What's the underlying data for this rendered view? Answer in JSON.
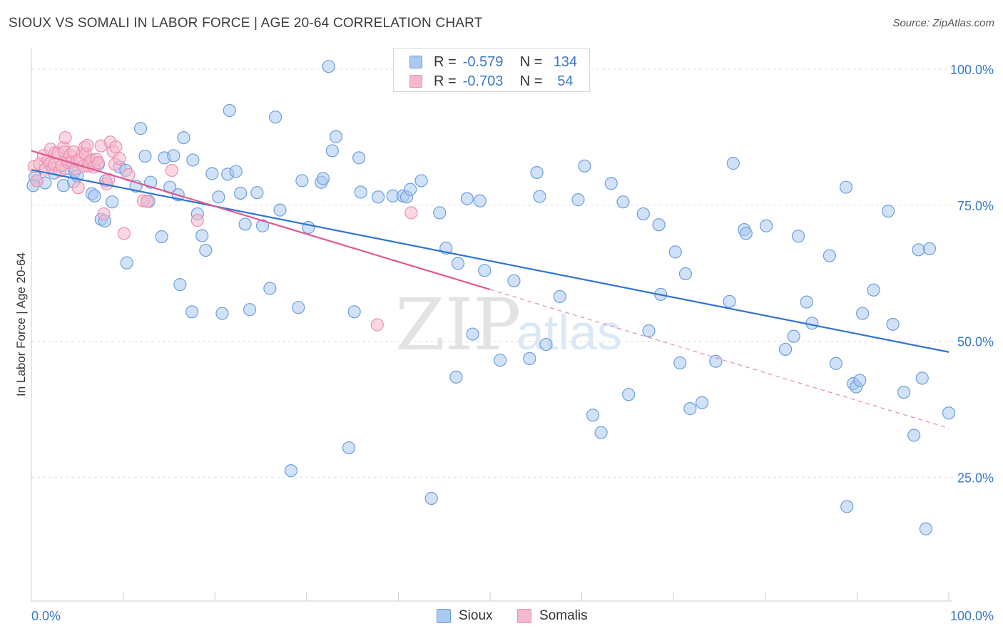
{
  "title": "SIOUX VS SOMALI IN LABOR FORCE | AGE 20-64 CORRELATION CHART",
  "source": "Source: ZipAtlas.com",
  "watermark": {
    "zip": "ZIP",
    "atlas": "atlas"
  },
  "legend": {
    "r_label": "R =",
    "n_label": "N =",
    "rows": [
      {
        "series": "Sioux",
        "r": "-0.579",
        "n": "134"
      },
      {
        "series": "Somalis",
        "r": "-0.703",
        "n": "54"
      }
    ]
  },
  "colors": {
    "sioux_fill": "#a9c9f2",
    "sioux_stroke": "#6d9fdc",
    "sioux_line": "#2f74d0",
    "somalis_fill": "#f6b8cc",
    "somalis_stroke": "#ec8fae",
    "somalis_line": "#e0588f",
    "tick_label": "#3a78c9",
    "grid": "#dddddd"
  },
  "chart_data": {
    "type": "scatter",
    "xlabel": "",
    "ylabel": "In Labor Force | Age 20-64",
    "xlim": [
      0,
      100
    ],
    "ylim": [
      5,
      105
    ],
    "x_tick_labels": [
      "0.0%",
      "100.0%"
    ],
    "y_ticks": [
      25,
      50,
      75,
      100
    ],
    "y_tick_labels": [
      "25.0%",
      "50.0%",
      "75.0%",
      "100.0%"
    ],
    "grid": true,
    "legend_position": "bottom-center",
    "series": [
      {
        "name": "Sioux",
        "trend": {
          "x": [
            0,
            100
          ],
          "y": [
            81.5,
            48
          ]
        },
        "points": [
          [
            0.4,
            80.2
          ],
          [
            0.6,
            79.5
          ],
          [
            1.5,
            79.1
          ],
          [
            2.5,
            80.9
          ],
          [
            3.5,
            78.6
          ],
          [
            3.8,
            81.7
          ],
          [
            4.6,
            79.3
          ],
          [
            4.7,
            81.2
          ],
          [
            5,
            80.4
          ],
          [
            6.4,
            83.1
          ],
          [
            6.6,
            77.1
          ],
          [
            6.9,
            76.7
          ],
          [
            7.3,
            82.5
          ],
          [
            7.6,
            72.4
          ],
          [
            8,
            72.1
          ],
          [
            8.1,
            79.5
          ],
          [
            8.8,
            75.6
          ],
          [
            9.6,
            82
          ],
          [
            10.3,
            81.4
          ],
          [
            10.4,
            64.4
          ],
          [
            11.4,
            78.5
          ],
          [
            11.9,
            89.1
          ],
          [
            12.4,
            84
          ],
          [
            12.8,
            75.7
          ],
          [
            13,
            79.2
          ],
          [
            14.2,
            69.2
          ],
          [
            14.5,
            83.7
          ],
          [
            15.1,
            78.3
          ],
          [
            15.5,
            84.1
          ],
          [
            16,
            76.9
          ],
          [
            16.2,
            60.4
          ],
          [
            16.6,
            87.4
          ],
          [
            17.5,
            55.4
          ],
          [
            17.6,
            83.3
          ],
          [
            18.1,
            73.4
          ],
          [
            18.6,
            69.4
          ],
          [
            19,
            66.7
          ],
          [
            19.7,
            80.8
          ],
          [
            20.4,
            76.5
          ],
          [
            20.8,
            55.1
          ],
          [
            21.4,
            80.7
          ],
          [
            21.6,
            92.4
          ],
          [
            22.3,
            81.2
          ],
          [
            22.8,
            77.2
          ],
          [
            23.3,
            71.5
          ],
          [
            23.8,
            55.8
          ],
          [
            24.6,
            77.3
          ],
          [
            25.2,
            71.2
          ],
          [
            26,
            59.7
          ],
          [
            26.6,
            91.2
          ],
          [
            27.1,
            74.1
          ],
          [
            28.3,
            26.2
          ],
          [
            29.1,
            56.2
          ],
          [
            29.5,
            79.5
          ],
          [
            30.2,
            70.9
          ],
          [
            31.6,
            79.2
          ],
          [
            31.8,
            79.9
          ],
          [
            32.4,
            100.5
          ],
          [
            32.8,
            85
          ],
          [
            33.2,
            87.6
          ],
          [
            34.6,
            30.4
          ],
          [
            35.2,
            55.4
          ],
          [
            35.7,
            83.7
          ],
          [
            35.9,
            77.4
          ],
          [
            37.8,
            76.5
          ],
          [
            39.4,
            76.7
          ],
          [
            40.5,
            76.7
          ],
          [
            40.9,
            76.5
          ],
          [
            41.3,
            77.9
          ],
          [
            42.5,
            79.5
          ],
          [
            43.6,
            21.1
          ],
          [
            44.5,
            73.6
          ],
          [
            45.2,
            67.1
          ],
          [
            46.3,
            43.4
          ],
          [
            46.5,
            64.3
          ],
          [
            47.5,
            76.2
          ],
          [
            48.1,
            51.3
          ],
          [
            48.9,
            75.8
          ],
          [
            49.4,
            63
          ],
          [
            51.1,
            46.5
          ],
          [
            52.6,
            61.1
          ],
          [
            54.3,
            46.8
          ],
          [
            55.1,
            81
          ],
          [
            55.4,
            76.6
          ],
          [
            56.1,
            49.4
          ],
          [
            57.6,
            58.2
          ],
          [
            59.6,
            76
          ],
          [
            60.3,
            82.2
          ],
          [
            61.2,
            36.4
          ],
          [
            62.1,
            33.2
          ],
          [
            63.2,
            79
          ],
          [
            64.5,
            75.6
          ],
          [
            65.1,
            40.2
          ],
          [
            66.7,
            73.4
          ],
          [
            67.3,
            51.9
          ],
          [
            68.4,
            71.4
          ],
          [
            68.6,
            58.6
          ],
          [
            70.2,
            66.4
          ],
          [
            70.7,
            46
          ],
          [
            71.3,
            62.4
          ],
          [
            71.8,
            37.6
          ],
          [
            73.1,
            38.7
          ],
          [
            74.6,
            46.3
          ],
          [
            76.1,
            57.3
          ],
          [
            76.5,
            82.7
          ],
          [
            77.7,
            70.5
          ],
          [
            77.9,
            69.8
          ],
          [
            80.1,
            71.2
          ],
          [
            82.2,
            48.5
          ],
          [
            83.1,
            50.9
          ],
          [
            83.6,
            69.3
          ],
          [
            84.5,
            57.2
          ],
          [
            85.1,
            53.3
          ],
          [
            87,
            65.7
          ],
          [
            87.7,
            45.9
          ],
          [
            88.8,
            78.3
          ],
          [
            88.9,
            19.6
          ],
          [
            89.6,
            42.2
          ],
          [
            89.9,
            41.6
          ],
          [
            90.3,
            42.8
          ],
          [
            90.6,
            55.1
          ],
          [
            91.8,
            59.4
          ],
          [
            93.4,
            73.9
          ],
          [
            93.9,
            53.1
          ],
          [
            95.1,
            40.6
          ],
          [
            96.2,
            32.7
          ],
          [
            96.7,
            66.8
          ],
          [
            97.1,
            43.2
          ],
          [
            97.5,
            15.5
          ],
          [
            97.9,
            67
          ],
          [
            100,
            36.8
          ],
          [
            0.2,
            78.6
          ]
        ]
      },
      {
        "name": "Somalis",
        "trend": {
          "x": [
            0,
            50
          ],
          "y": [
            85,
            59.5
          ]
        },
        "trend_dashed": {
          "x": [
            50,
            100
          ],
          "y": [
            59.5,
            34
          ]
        },
        "points": [
          [
            0.3,
            82.1
          ],
          [
            0.6,
            79.5
          ],
          [
            0.9,
            82.6
          ],
          [
            1.3,
            84.1
          ],
          [
            1.5,
            81.6
          ],
          [
            1.8,
            83.2
          ],
          [
            2,
            82.6
          ],
          [
            2.1,
            85.3
          ],
          [
            2.3,
            81.8
          ],
          [
            2.5,
            82.5
          ],
          [
            2.6,
            84.6
          ],
          [
            2.9,
            84.6
          ],
          [
            3.1,
            81.3
          ],
          [
            3.3,
            82.3
          ],
          [
            3.5,
            85.6
          ],
          [
            3.6,
            84.8
          ],
          [
            3.7,
            87.4
          ],
          [
            3.9,
            83.3
          ],
          [
            4,
            82.8
          ],
          [
            4.2,
            84.2
          ],
          [
            4.4,
            82.9
          ],
          [
            4.6,
            84.8
          ],
          [
            4.8,
            81.7
          ],
          [
            5,
            83.2
          ],
          [
            5.1,
            78.2
          ],
          [
            5.3,
            83.4
          ],
          [
            5.6,
            84.6
          ],
          [
            5.7,
            82.2
          ],
          [
            5.8,
            85.6
          ],
          [
            5.9,
            84.4
          ],
          [
            6.1,
            86
          ],
          [
            6.2,
            82.2
          ],
          [
            6.3,
            82.8
          ],
          [
            6.6,
            83.3
          ],
          [
            6.8,
            82
          ],
          [
            7.1,
            83.4
          ],
          [
            7.3,
            82.8
          ],
          [
            7.6,
            85.9
          ],
          [
            7.9,
            73.4
          ],
          [
            8.2,
            78.9
          ],
          [
            8.4,
            79.7
          ],
          [
            8.6,
            86.6
          ],
          [
            8.9,
            84.9
          ],
          [
            9.1,
            82.5
          ],
          [
            9.2,
            85.7
          ],
          [
            9.6,
            83.6
          ],
          [
            10.1,
            69.8
          ],
          [
            10.6,
            80.6
          ],
          [
            12.2,
            75.8
          ],
          [
            12.6,
            75.7
          ],
          [
            15.3,
            81.4
          ],
          [
            18.1,
            72.2
          ],
          [
            37.7,
            53
          ],
          [
            41.4,
            73.6
          ]
        ]
      }
    ]
  }
}
